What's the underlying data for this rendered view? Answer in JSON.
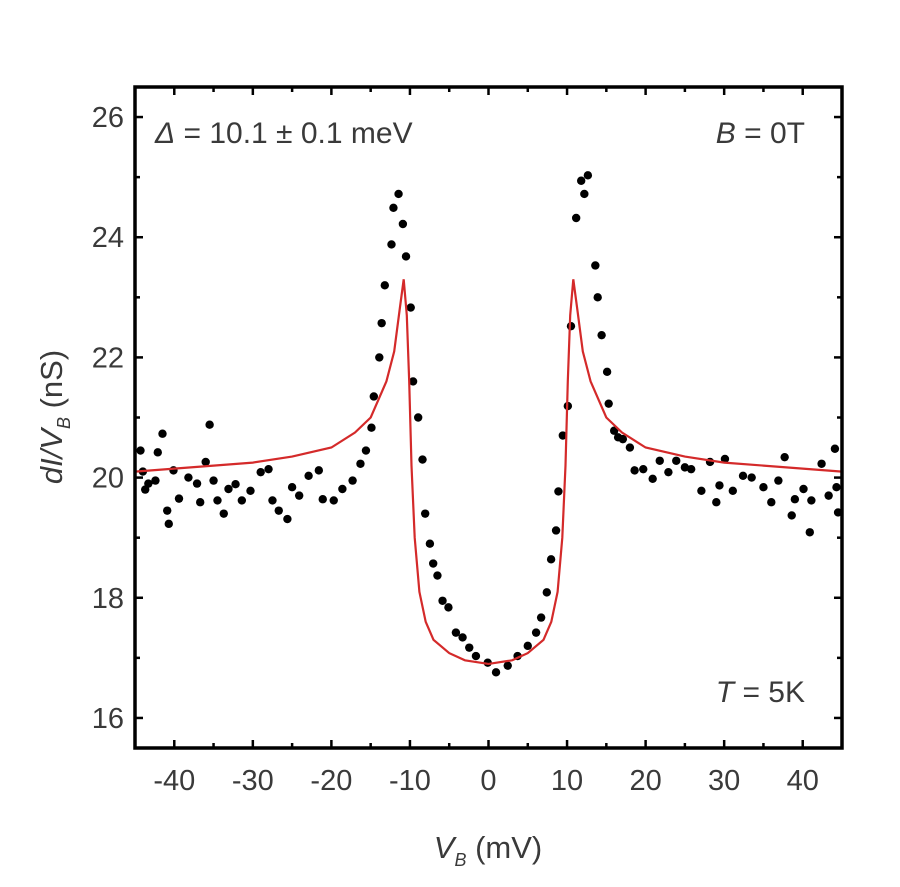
{
  "chart_data": {
    "type": "scatter",
    "title": "",
    "xlabel": {
      "var": "V",
      "sub": "B",
      "unit": " (mV)"
    },
    "ylabel": {
      "var": "dI/V",
      "sub": "B",
      "unit": " (nS)"
    },
    "xlim": [
      -45,
      45
    ],
    "ylim": [
      15.5,
      26.5
    ],
    "xticks": [
      -40,
      -30,
      -20,
      -10,
      0,
      10,
      20,
      30,
      40
    ],
    "xtick_labels": [
      "-40",
      "-30",
      "-20",
      "-10",
      "0",
      "10",
      "20",
      "30",
      "40"
    ],
    "yticks": [
      16,
      18,
      20,
      22,
      24,
      26
    ],
    "ytick_labels": [
      "16",
      "18",
      "20",
      "22",
      "24",
      "26"
    ],
    "grid": false,
    "annotations": [
      {
        "symbol": "Δ",
        "text": " = 10.1 ± 0.1 meV",
        "position": "top-left"
      },
      {
        "symbol": "B",
        "text": " = 0T",
        "position": "top-right"
      },
      {
        "symbol": "T",
        "text": " = 5K",
        "position": "bottom-right"
      }
    ],
    "series": [
      {
        "name": "data",
        "kind": "scatter",
        "color": "#000000",
        "points": [
          [
            -44.3,
            20.45
          ],
          [
            -44.0,
            20.1
          ],
          [
            -43.7,
            19.8
          ],
          [
            -43.3,
            19.9
          ],
          [
            -42.4,
            19.95
          ],
          [
            -42.1,
            20.42
          ],
          [
            -41.5,
            20.73
          ],
          [
            -40.9,
            19.45
          ],
          [
            -40.7,
            19.23
          ],
          [
            -40.1,
            20.12
          ],
          [
            -39.4,
            19.65
          ],
          [
            -38.2,
            20.0
          ],
          [
            -37.1,
            19.9
          ],
          [
            -36.7,
            19.59
          ],
          [
            -36.0,
            20.26
          ],
          [
            -35.5,
            20.88
          ],
          [
            -35.0,
            19.95
          ],
          [
            -34.5,
            19.62
          ],
          [
            -33.7,
            19.4
          ],
          [
            -33.1,
            19.81
          ],
          [
            -32.2,
            19.89
          ],
          [
            -31.4,
            19.62
          ],
          [
            -30.3,
            19.78
          ],
          [
            -29.0,
            20.09
          ],
          [
            -28.0,
            20.14
          ],
          [
            -27.5,
            19.62
          ],
          [
            -26.7,
            19.45
          ],
          [
            -25.6,
            19.31
          ],
          [
            -25.0,
            19.84
          ],
          [
            -24.1,
            19.7
          ],
          [
            -22.9,
            20.03
          ],
          [
            -21.6,
            20.12
          ],
          [
            -21.1,
            19.64
          ],
          [
            -19.7,
            19.62
          ],
          [
            -18.6,
            19.81
          ],
          [
            -17.3,
            19.95
          ],
          [
            -16.3,
            20.23
          ],
          [
            -15.6,
            20.45
          ],
          [
            -14.9,
            20.83
          ],
          [
            -14.6,
            21.35
          ],
          [
            -13.9,
            22.0
          ],
          [
            -13.6,
            22.57
          ],
          [
            -13.2,
            23.2
          ],
          [
            -12.35,
            23.88
          ],
          [
            -12.1,
            24.49
          ],
          [
            -11.45,
            24.72
          ],
          [
            -10.9,
            24.22
          ],
          [
            -10.5,
            23.68
          ],
          [
            -9.9,
            22.83
          ],
          [
            -9.6,
            21.6
          ],
          [
            -8.95,
            21.0
          ],
          [
            -8.4,
            20.3
          ],
          [
            -8.06,
            19.4
          ],
          [
            -7.46,
            18.9
          ],
          [
            -7.04,
            18.57
          ],
          [
            -6.5,
            18.37
          ],
          [
            -5.85,
            17.95
          ],
          [
            -5.1,
            17.84
          ],
          [
            -4.15,
            17.42
          ],
          [
            -3.3,
            17.34
          ],
          [
            -2.45,
            17.17
          ],
          [
            -1.6,
            17.03
          ],
          [
            -0.1,
            16.92
          ],
          [
            0.96,
            16.76
          ],
          [
            2.45,
            16.87
          ],
          [
            3.7,
            17.03
          ],
          [
            5.0,
            17.2
          ],
          [
            6.06,
            17.42
          ],
          [
            6.7,
            17.67
          ],
          [
            7.42,
            18.09
          ],
          [
            7.97,
            18.64
          ],
          [
            8.6,
            19.12
          ],
          [
            8.9,
            19.77
          ],
          [
            9.46,
            20.7
          ],
          [
            10.1,
            21.19
          ],
          [
            10.5,
            22.52
          ],
          [
            11.16,
            24.32
          ],
          [
            11.8,
            24.94
          ],
          [
            12.2,
            24.72
          ],
          [
            12.65,
            25.03
          ],
          [
            13.6,
            23.53
          ],
          [
            13.9,
            23.0
          ],
          [
            14.4,
            22.37
          ],
          [
            15.1,
            21.76
          ],
          [
            15.3,
            21.23
          ],
          [
            16.0,
            20.78
          ],
          [
            16.5,
            20.67
          ],
          [
            17.1,
            20.64
          ],
          [
            18.0,
            20.5
          ],
          [
            18.6,
            20.12
          ],
          [
            19.7,
            20.14
          ],
          [
            20.9,
            19.98
          ],
          [
            21.8,
            20.28
          ],
          [
            22.9,
            20.09
          ],
          [
            23.9,
            20.28
          ],
          [
            25.0,
            20.17
          ],
          [
            25.8,
            20.14
          ],
          [
            27.1,
            19.78
          ],
          [
            28.2,
            20.26
          ],
          [
            29.0,
            19.59
          ],
          [
            29.4,
            19.87
          ],
          [
            30.1,
            20.31
          ],
          [
            31.1,
            19.78
          ],
          [
            32.4,
            20.03
          ],
          [
            33.5,
            20.0
          ],
          [
            35.0,
            19.84
          ],
          [
            36.0,
            19.59
          ],
          [
            36.9,
            19.95
          ],
          [
            37.7,
            20.34
          ],
          [
            38.6,
            19.37
          ],
          [
            39.0,
            19.64
          ],
          [
            40.1,
            19.81
          ],
          [
            40.9,
            19.09
          ],
          [
            41.1,
            19.62
          ],
          [
            42.4,
            20.23
          ],
          [
            43.3,
            19.7
          ],
          [
            44.1,
            20.48
          ],
          [
            44.3,
            19.84
          ],
          [
            44.5,
            19.42
          ]
        ]
      },
      {
        "name": "fit",
        "kind": "line",
        "color": "#d42a2a",
        "points": [
          [
            -45,
            20.1
          ],
          [
            -40,
            20.15
          ],
          [
            -35,
            20.2
          ],
          [
            -30,
            20.25
          ],
          [
            -25,
            20.35
          ],
          [
            -20,
            20.5
          ],
          [
            -17,
            20.75
          ],
          [
            -15,
            21.0
          ],
          [
            -13,
            21.6
          ],
          [
            -12,
            22.1
          ],
          [
            -11.3,
            22.8
          ],
          [
            -10.8,
            23.3
          ],
          [
            -10.4,
            22.7
          ],
          [
            -10.1,
            21.6
          ],
          [
            -9.8,
            20.2
          ],
          [
            -9.4,
            19.0
          ],
          [
            -8.8,
            18.1
          ],
          [
            -8,
            17.6
          ],
          [
            -7,
            17.3
          ],
          [
            -5,
            17.08
          ],
          [
            -3,
            16.96
          ],
          [
            0,
            16.9
          ],
          [
            3,
            16.96
          ],
          [
            5,
            17.08
          ],
          [
            7,
            17.3
          ],
          [
            8,
            17.6
          ],
          [
            8.8,
            18.1
          ],
          [
            9.4,
            19.0
          ],
          [
            9.8,
            20.2
          ],
          [
            10.1,
            21.6
          ],
          [
            10.4,
            22.7
          ],
          [
            10.8,
            23.3
          ],
          [
            11.3,
            22.8
          ],
          [
            12,
            22.1
          ],
          [
            13,
            21.6
          ],
          [
            15,
            21.0
          ],
          [
            17,
            20.75
          ],
          [
            20,
            20.5
          ],
          [
            25,
            20.35
          ],
          [
            30,
            20.25
          ],
          [
            35,
            20.2
          ],
          [
            40,
            20.15
          ],
          [
            45,
            20.1
          ]
        ]
      }
    ]
  }
}
